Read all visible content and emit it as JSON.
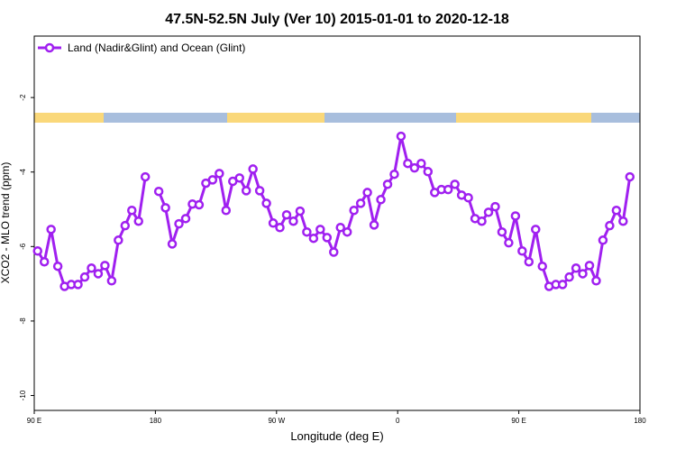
{
  "chart_data": {
    "type": "line",
    "title": "47.5N-52.5N July (Ver 10)   2015-01-01 to 2020-12-18",
    "xlabel": "Longitude (deg E)",
    "ylabel": "XCO2 - MLO trend (ppm)",
    "xlim": [
      90,
      540
    ],
    "xticks": [
      {
        "value": 90,
        "label": "90 E"
      },
      {
        "value": 180,
        "label": "180"
      },
      {
        "value": 270,
        "label": "90 W"
      },
      {
        "value": 360,
        "label": "0"
      },
      {
        "value": 450,
        "label": "90 E"
      },
      {
        "value": 540,
        "label": "180"
      }
    ],
    "ylim": [
      -10.4,
      -0.35
    ],
    "yticks": [
      -2,
      -4,
      -6,
      -8,
      -10
    ],
    "legend": "top-left",
    "x": [
      92.5,
      97.5,
      102.5,
      107.5,
      112.5,
      117.5,
      122.5,
      127.5,
      132.5,
      137.5,
      142.5,
      147.5,
      152.5,
      157.5,
      162.5,
      167.5,
      172.5,
      177.5,
      182.5,
      187.5,
      192.5,
      197.5,
      202.5,
      207.5,
      212.5,
      217.5,
      222.5,
      227.5,
      232.5,
      237.5,
      242.5,
      247.5,
      252.5,
      257.5,
      262.5,
      267.5,
      272.5,
      277.5,
      282.5,
      287.5,
      292.5,
      297.5,
      302.5,
      307.5,
      312.5,
      317.5,
      322.5,
      327.5,
      332.5,
      337.5,
      342.5,
      347.5,
      352.5,
      357.5,
      362.5,
      367.5,
      372.5,
      377.5,
      382.5,
      387.5,
      392.5,
      397.5,
      402.5,
      407.5,
      412.5,
      417.5,
      422.5,
      427.5,
      432.5,
      437.5,
      442.5,
      447.5,
      452.5,
      457.5,
      462.5,
      467.5,
      472.5,
      477.5,
      482.5,
      487.5,
      492.5,
      497.5,
      502.5,
      507.5,
      512.5,
      517.5,
      522.5,
      527.5,
      532.5
    ],
    "series": [
      {
        "name": "Land (Nadir&Glint) and Ocean (Glint)",
        "color": "#a020f0",
        "values": [
          -6.12,
          -6.41,
          -5.54,
          -6.53,
          -7.07,
          -7.02,
          -7.02,
          -6.82,
          -6.58,
          -6.73,
          -6.51,
          -6.92,
          -5.83,
          -5.44,
          -5.03,
          -5.32,
          -4.13,
          null,
          -4.52,
          -4.96,
          -5.93,
          -5.39,
          -5.25,
          -4.86,
          -4.88,
          -4.3,
          -4.21,
          -4.04,
          -5.03,
          -4.25,
          -4.16,
          -4.5,
          -3.92,
          -4.5,
          -4.84,
          -5.37,
          -5.49,
          -5.15,
          -5.32,
          -5.05,
          -5.61,
          -5.78,
          -5.54,
          -5.76,
          -6.15,
          -5.49,
          -5.61,
          -5.03,
          -4.84,
          -4.55,
          -5.42,
          -4.74,
          -4.33,
          -4.06,
          -3.04,
          -3.77,
          -3.89,
          -3.77,
          -3.99,
          -4.55,
          -4.47,
          -4.47,
          -4.33,
          -4.62,
          -4.69,
          -5.25,
          -5.32,
          -5.08,
          -4.93,
          -5.61,
          -5.9,
          -5.18,
          -6.12,
          -6.41,
          -5.54,
          -6.53,
          -7.07,
          -7.02,
          -7.02,
          -6.82,
          -6.58,
          -6.73,
          -6.51,
          -6.92,
          -5.83,
          -5.44,
          -5.03,
          -5.32,
          -4.13
        ]
      }
    ]
  }
}
